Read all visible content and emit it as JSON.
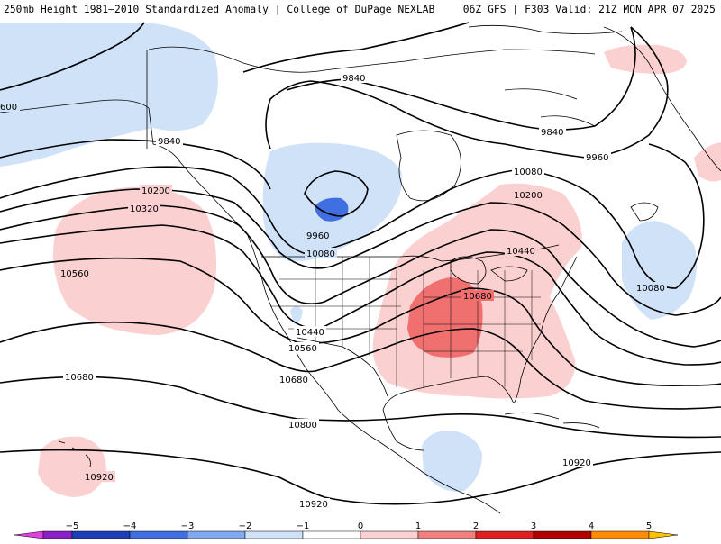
{
  "header": {
    "title_left": "250mb Height 1981–2010 Standardized Anomaly | College of DuPage NEXLAB",
    "title_right": "06Z GFS | F303 Valid: 21Z MON APR 07 2025"
  },
  "contour_labels": [
    "600",
    "9840",
    "9840",
    "9840",
    "9960",
    "9960",
    "10080",
    "10080",
    "10080",
    "10200",
    "10200",
    "10320",
    "10440",
    "10440",
    "10560",
    "10560",
    "10680",
    "10680",
    "10680",
    "10800",
    "10920",
    "10920",
    "10920"
  ],
  "colorbar": {
    "ticks": [
      "−5",
      "−4",
      "−3",
      "−2",
      "−1",
      "0",
      "1",
      "2",
      "3",
      "4",
      "5"
    ],
    "colors": [
      "#e040e0",
      "#8a1fc8",
      "#1c3fb8",
      "#3f6fe0",
      "#7fa8f0",
      "#cfe2f8",
      "#ffffff",
      "#fbd0d0",
      "#f08080",
      "#e02020",
      "#b00000",
      "#ff8c00",
      "#ffc000"
    ]
  },
  "anomaly_colors": {
    "light_blue": "#cfe2f8",
    "medium_blue": "#3f6fe0",
    "light_red": "#fbd0d0",
    "medium_red": "#f07070"
  }
}
